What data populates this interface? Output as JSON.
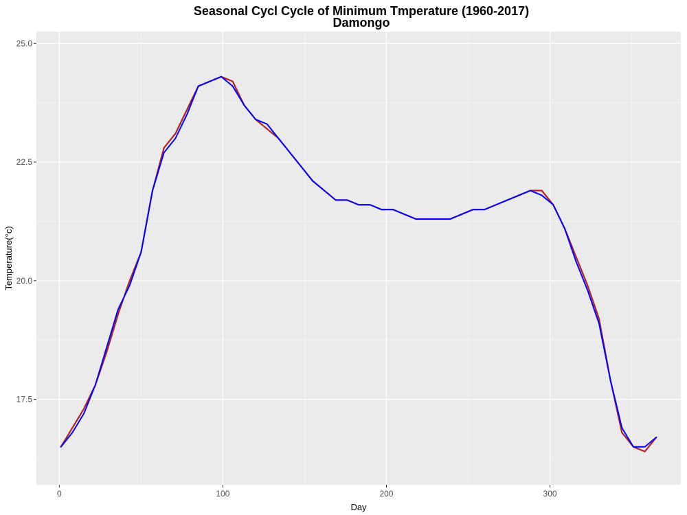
{
  "chart_data": {
    "type": "line",
    "title": "Seasonal Cycl Cycle of Minimum Tmperature (1960-2017)",
    "subtitle": "Damongo",
    "xlabel": "Day",
    "ylabel": "Temperature(°c)",
    "xlim": [
      -14,
      380
    ],
    "ylim": [
      15.7,
      25.25
    ],
    "x_ticks": [
      0,
      100,
      200,
      300
    ],
    "x_tick_labels": [
      "0",
      "100",
      "200",
      "300"
    ],
    "y_ticks": [
      17.5,
      20.0,
      22.5,
      25.0
    ],
    "y_tick_labels": [
      "17.5",
      "20.0",
      "22.5",
      "25.0"
    ],
    "grid": true,
    "background": "#ebebeb",
    "series": [
      {
        "role": "daily",
        "color": "#b22222",
        "x": [
          1,
          8,
          15,
          22,
          29,
          36,
          43,
          50,
          57,
          64,
          71,
          78,
          85,
          92,
          99,
          106,
          113,
          120,
          127,
          134,
          141,
          148,
          155,
          162,
          169,
          176,
          183,
          190,
          197,
          204,
          211,
          218,
          225,
          232,
          239,
          246,
          253,
          260,
          267,
          274,
          281,
          288,
          295,
          302,
          309,
          316,
          323,
          330,
          337,
          344,
          351,
          358,
          365
        ],
        "y": [
          16.5,
          16.9,
          17.3,
          17.8,
          18.5,
          19.3,
          20.0,
          20.6,
          21.9,
          22.8,
          23.1,
          23.6,
          24.1,
          24.2,
          24.3,
          24.2,
          23.7,
          23.4,
          23.2,
          23.0,
          22.7,
          22.4,
          22.1,
          21.9,
          21.7,
          21.7,
          21.6,
          21.6,
          21.5,
          21.5,
          21.4,
          21.3,
          21.3,
          21.3,
          21.3,
          21.4,
          21.5,
          21.5,
          21.6,
          21.7,
          21.8,
          21.9,
          21.9,
          21.6,
          21.1,
          20.5,
          19.9,
          19.2,
          17.9,
          16.8,
          16.5,
          16.4,
          16.7
        ]
      },
      {
        "role": "smoothed",
        "color": "#0000ff",
        "x": [
          1,
          8,
          15,
          22,
          29,
          36,
          43,
          50,
          57,
          64,
          71,
          78,
          85,
          92,
          99,
          106,
          113,
          120,
          127,
          134,
          141,
          148,
          155,
          162,
          169,
          176,
          183,
          190,
          197,
          204,
          211,
          218,
          225,
          232,
          239,
          246,
          253,
          260,
          267,
          274,
          281,
          288,
          295,
          302,
          309,
          316,
          323,
          330,
          337,
          344,
          351,
          358,
          365
        ],
        "y": [
          16.5,
          16.8,
          17.2,
          17.8,
          18.6,
          19.4,
          19.9,
          20.6,
          21.9,
          22.7,
          23.0,
          23.5,
          24.1,
          24.2,
          24.3,
          24.1,
          23.7,
          23.4,
          23.3,
          23.0,
          22.7,
          22.4,
          22.1,
          21.9,
          21.7,
          21.7,
          21.6,
          21.6,
          21.5,
          21.5,
          21.4,
          21.3,
          21.3,
          21.3,
          21.3,
          21.4,
          21.5,
          21.5,
          21.6,
          21.7,
          21.8,
          21.9,
          21.8,
          21.6,
          21.1,
          20.4,
          19.8,
          19.1,
          17.9,
          16.9,
          16.5,
          16.5,
          16.7
        ]
      }
    ]
  }
}
